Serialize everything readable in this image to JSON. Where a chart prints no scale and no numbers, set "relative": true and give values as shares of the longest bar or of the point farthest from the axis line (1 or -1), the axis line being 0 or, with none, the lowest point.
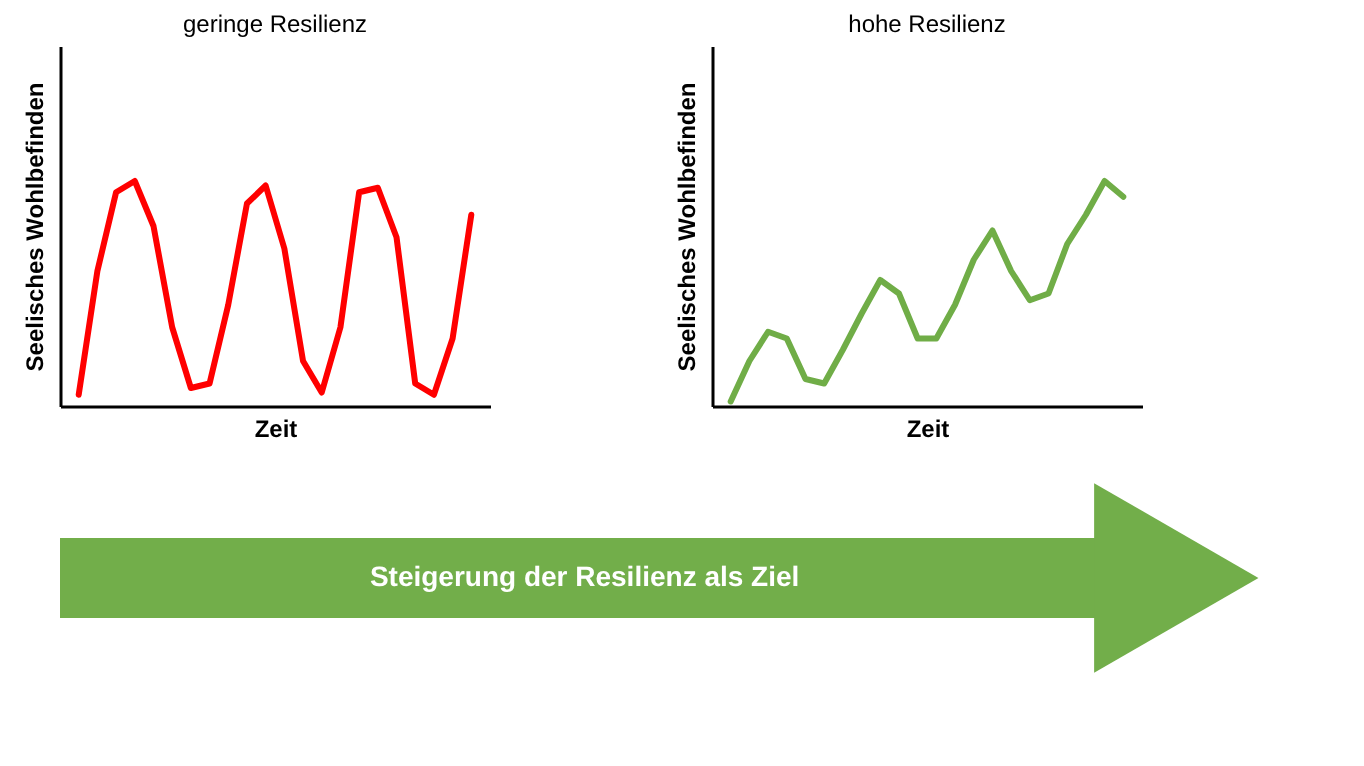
{
  "chart_data": [
    {
      "type": "line",
      "title": "geringe Resilienz",
      "xlabel": "Zeit",
      "ylabel": "Seelisches Wohlbefinden",
      "relative": true,
      "grid": false,
      "legend": false,
      "marker": "none",
      "line_style": "solid",
      "categories": [
        null,
        null,
        null,
        null,
        null,
        null,
        null,
        null,
        null,
        null,
        null,
        null,
        null,
        null,
        null,
        null,
        null,
        null,
        null,
        null,
        null,
        null
      ],
      "series": [
        {
          "color": "#ff0000",
          "values": [
            0.05,
            0.6,
            0.95,
            1.0,
            0.8,
            0.35,
            0.08,
            0.1,
            0.45,
            0.9,
            0.98,
            0.7,
            0.2,
            0.06,
            0.35,
            0.95,
            0.97,
            0.75,
            0.1,
            0.05,
            0.3,
            0.85
          ]
        }
      ]
    },
    {
      "type": "line",
      "title": "hohe Resilienz",
      "xlabel": "Zeit",
      "ylabel": "Seelisches Wohlbefinden",
      "relative": true,
      "grid": false,
      "legend": false,
      "marker": "none",
      "line_style": "solid",
      "categories": [
        null,
        null,
        null,
        null,
        null,
        null,
        null,
        null,
        null,
        null,
        null,
        null,
        null,
        null,
        null,
        null,
        null,
        null,
        null,
        null,
        null,
        null
      ],
      "series": [
        {
          "color": "#70ad47",
          "values": [
            0.02,
            0.2,
            0.33,
            0.3,
            0.12,
            0.1,
            0.25,
            0.41,
            0.56,
            0.5,
            0.3,
            0.3,
            0.45,
            0.65,
            0.78,
            0.6,
            0.47,
            0.5,
            0.72,
            0.85,
            1.0,
            0.93
          ]
        }
      ]
    },
    {
      "type": "other",
      "annotations": [
        "Steigerung der Resilienz als Ziel"
      ]
    }
  ]
}
